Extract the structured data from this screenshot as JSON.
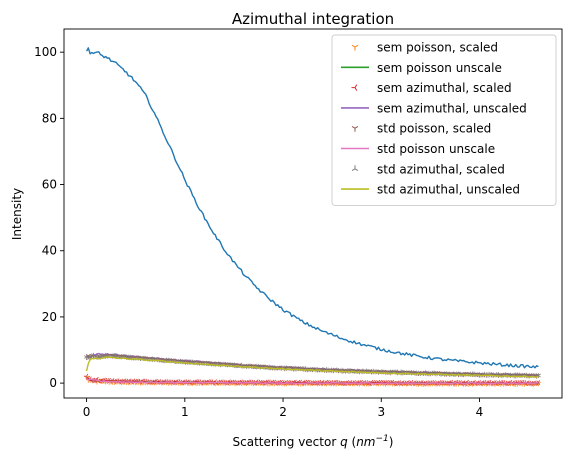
{
  "chart_data": {
    "type": "line",
    "title": "Azimuthal integration",
    "xlabel_main": "Scattering vector ",
    "xlabel_var": "q",
    "xlabel_unit_open": " (",
    "xlabel_unit_base": "nm",
    "xlabel_unit_exp": "−1",
    "xlabel_unit_close": ")",
    "ylabel": "Intensity",
    "xlim": [
      -0.23,
      4.84
    ],
    "ylim": [
      -4.5,
      107
    ],
    "x_ticks": [
      0,
      1,
      2,
      3,
      4
    ],
    "y_ticks": [
      0,
      20,
      40,
      60,
      80,
      100
    ],
    "grid": false,
    "legend_position": "top-right",
    "series": [
      {
        "name": "",
        "color": "#1f77b4",
        "style": "line",
        "noise": 0.9,
        "x": [
          0.0,
          0.02,
          0.05,
          0.1,
          0.2,
          0.3,
          0.4,
          0.5,
          0.6,
          0.7,
          0.8,
          0.9,
          1.0,
          1.1,
          1.2,
          1.3,
          1.4,
          1.5,
          1.6,
          1.7,
          1.8,
          1.9,
          2.0,
          2.2,
          2.4,
          2.6,
          2.8,
          3.0,
          3.2,
          3.4,
          3.6,
          3.8,
          4.0,
          4.2,
          4.4,
          4.6
        ],
        "y": [
          100.5,
          101.0,
          100.0,
          99.5,
          98.5,
          96.5,
          94.0,
          91.0,
          87.0,
          81.0,
          74.5,
          68.0,
          61.5,
          55.5,
          50.0,
          45.0,
          40.5,
          36.5,
          33.0,
          29.8,
          27.0,
          24.5,
          22.2,
          18.5,
          15.7,
          13.5,
          11.7,
          10.2,
          9.0,
          8.0,
          7.2,
          6.6,
          6.1,
          5.6,
          5.2,
          4.8
        ]
      },
      {
        "name": "sem poisson, scaled",
        "color": "#ff7f0e",
        "style": "marker",
        "marker": "tri_down",
        "noise": 0.3,
        "x": [
          0.0,
          0.02,
          0.05,
          0.1,
          0.3,
          0.5,
          1.0,
          1.5,
          2.0,
          2.5,
          3.0,
          3.5,
          4.0,
          4.5,
          4.6
        ],
        "y": [
          1.6,
          0.9,
          0.7,
          0.6,
          0.3,
          0.2,
          0.1,
          0.0,
          -0.1,
          -0.1,
          -0.1,
          -0.2,
          -0.2,
          -0.2,
          -0.2
        ]
      },
      {
        "name": "sem poisson unscale",
        "color": "#2ca02c",
        "style": "line",
        "noise": 0.2,
        "x": [
          0.0,
          0.02,
          0.05,
          0.1,
          0.3,
          0.5,
          1.0,
          1.5,
          2.0,
          2.5,
          3.0,
          3.5,
          4.0,
          4.5,
          4.6
        ],
        "y": [
          1.8,
          1.2,
          0.9,
          0.8,
          0.6,
          0.5,
          0.3,
          0.2,
          0.1,
          0.1,
          0.1,
          0.1,
          0.0,
          0.0,
          0.0
        ]
      },
      {
        "name": "sem azimuthal, scaled",
        "color": "#d62728",
        "style": "marker",
        "marker": "tri_left",
        "noise": 0.35,
        "x": [
          0.0,
          0.02,
          0.05,
          0.1,
          0.3,
          0.5,
          1.0,
          1.5,
          2.0,
          2.5,
          3.0,
          3.5,
          4.0,
          4.5,
          4.6
        ],
        "y": [
          2.0,
          1.4,
          1.1,
          0.9,
          0.6,
          0.5,
          0.3,
          0.2,
          0.2,
          0.1,
          0.1,
          0.1,
          0.1,
          0.1,
          0.1
        ]
      },
      {
        "name": "sem azimuthal, unscaled",
        "color": "#9467bd",
        "style": "line",
        "noise": 0.4,
        "x": [
          0.0,
          0.05,
          0.1,
          0.2,
          0.3,
          0.5,
          0.7,
          1.0,
          1.5,
          2.0,
          2.5,
          3.0,
          3.5,
          4.0,
          4.5,
          4.6
        ],
        "y": [
          8.5,
          8.4,
          8.6,
          8.8,
          8.6,
          8.0,
          7.5,
          6.8,
          5.7,
          4.8,
          4.1,
          3.6,
          3.2,
          2.8,
          2.5,
          2.4
        ]
      },
      {
        "name": "std poisson, scaled",
        "color": "#8c564b",
        "style": "marker",
        "marker": "tri_down",
        "noise": 0.35,
        "x": [
          0.0,
          0.05,
          0.1,
          0.2,
          0.3,
          0.5,
          0.7,
          1.0,
          1.5,
          2.0,
          2.5,
          3.0,
          3.5,
          4.0,
          4.5,
          4.6
        ],
        "y": [
          8.0,
          8.0,
          8.2,
          8.3,
          8.2,
          7.7,
          7.2,
          6.5,
          5.5,
          4.6,
          3.9,
          3.4,
          3.0,
          2.6,
          2.3,
          2.2
        ]
      },
      {
        "name": "std poisson unscale",
        "color": "#e377c2",
        "style": "line",
        "noise": 0.3,
        "x": [
          0.0,
          0.02,
          0.05,
          0.1,
          0.3,
          0.5,
          1.0,
          1.5,
          2.0,
          2.5,
          3.0,
          3.5,
          4.0,
          4.5,
          4.6
        ],
        "y": [
          1.5,
          1.0,
          0.8,
          0.7,
          0.4,
          0.3,
          0.2,
          0.1,
          0.0,
          0.0,
          0.0,
          0.0,
          0.0,
          0.0,
          0.0
        ]
      },
      {
        "name": "std azimuthal, scaled",
        "color": "#7f7f7f",
        "style": "marker",
        "marker": "tri_up",
        "noise": 0.4,
        "x": [
          0.0,
          0.05,
          0.1,
          0.2,
          0.3,
          0.5,
          0.7,
          1.0,
          1.5,
          2.0,
          2.5,
          3.0,
          3.5,
          4.0,
          4.5,
          4.6
        ],
        "y": [
          7.8,
          7.9,
          8.1,
          8.2,
          8.0,
          7.5,
          7.0,
          6.3,
          5.3,
          4.4,
          3.8,
          3.3,
          2.9,
          2.5,
          2.2,
          2.1
        ]
      },
      {
        "name": "std azimuthal, unscaled",
        "color": "#bcbd22",
        "style": "line",
        "noise": 0.35,
        "x": [
          0.0,
          0.02,
          0.05,
          0.1,
          0.2,
          0.3,
          0.5,
          0.7,
          1.0,
          1.5,
          2.0,
          2.5,
          3.0,
          3.5,
          4.0,
          4.5,
          4.6
        ],
        "y": [
          4.0,
          6.5,
          7.2,
          7.5,
          7.8,
          7.6,
          7.2,
          6.8,
          6.1,
          5.1,
          4.3,
          3.6,
          3.1,
          2.7,
          2.3,
          2.0,
          1.9
        ]
      }
    ]
  }
}
